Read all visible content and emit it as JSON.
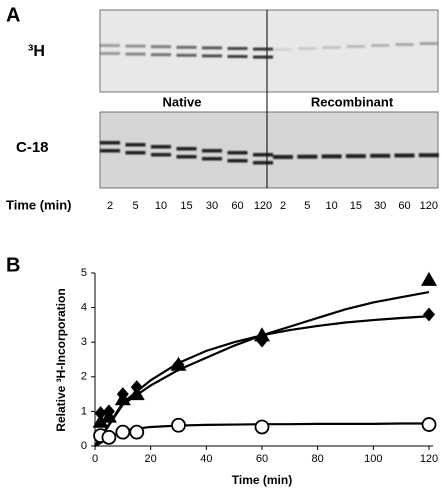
{
  "panel_a": {
    "label": "A",
    "row_labels": {
      "top": "³H",
      "bottom": "C-18"
    },
    "group_labels": {
      "native": "Native",
      "recombinant": "Recombinant"
    },
    "time_label": "Time (min)",
    "lanes": {
      "native": [
        2,
        5,
        10,
        15,
        30,
        60,
        120
      ],
      "recombinant": [
        2,
        5,
        10,
        15,
        30,
        60,
        120
      ]
    }
  },
  "chart_data": {
    "type": "scatter",
    "label": "B",
    "xlabel": "Time (min)",
    "ylabel": "Relative ³H-Incorporation",
    "xlim": [
      0,
      120
    ],
    "ylim": [
      0,
      5
    ],
    "xticks": [
      0,
      20,
      40,
      60,
      80,
      100,
      120
    ],
    "yticks": [
      0,
      1,
      2,
      3,
      4,
      5
    ],
    "series": [
      {
        "marker": "triangle",
        "color": "#000000",
        "x": [
          2,
          5,
          10,
          15,
          30,
          60,
          120
        ],
        "values": [
          0.7,
          0.85,
          1.35,
          1.5,
          2.35,
          3.2,
          4.8
        ]
      },
      {
        "marker": "diamond",
        "color": "#000000",
        "x": [
          2,
          5,
          10,
          15,
          30,
          60,
          120
        ],
        "values": [
          0.95,
          1.0,
          1.5,
          1.7,
          2.35,
          3.05,
          3.8
        ]
      },
      {
        "marker": "circle",
        "color": "#000000",
        "x": [
          2,
          5,
          10,
          15,
          30,
          60,
          120
        ],
        "values": [
          0.3,
          0.25,
          0.4,
          0.4,
          0.6,
          0.55,
          0.62
        ]
      }
    ],
    "curves": [
      {
        "x": [
          0,
          10,
          20,
          30,
          40,
          50,
          60,
          70,
          80,
          90,
          100,
          110,
          120
        ],
        "values": [
          0,
          1.2,
          1.75,
          2.2,
          2.55,
          2.9,
          3.2,
          3.45,
          3.7,
          3.95,
          4.15,
          4.3,
          4.45
        ]
      },
      {
        "x": [
          0,
          10,
          20,
          30,
          40,
          50,
          60,
          70,
          80,
          90,
          100,
          110,
          120
        ],
        "values": [
          0,
          1.25,
          1.9,
          2.4,
          2.75,
          3.0,
          3.2,
          3.35,
          3.47,
          3.57,
          3.64,
          3.7,
          3.75
        ]
      },
      {
        "x": [
          0,
          10,
          20,
          30,
          40,
          50,
          60,
          70,
          80,
          90,
          100,
          110,
          120
        ],
        "values": [
          0,
          0.45,
          0.55,
          0.59,
          0.61,
          0.62,
          0.63,
          0.63,
          0.64,
          0.64,
          0.64,
          0.65,
          0.65
        ]
      }
    ]
  }
}
